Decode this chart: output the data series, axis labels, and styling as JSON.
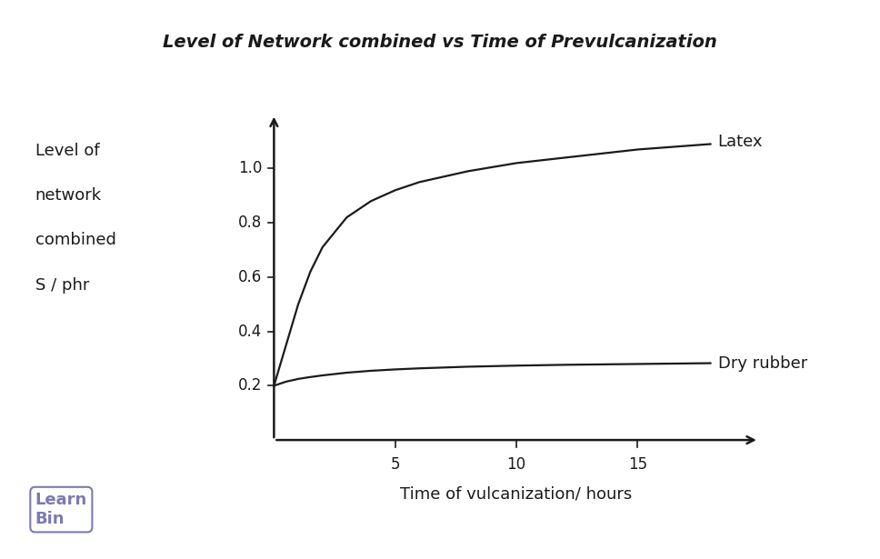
{
  "title": "Level of Network combined vs Time of Prevulcanization",
  "xlabel": "Time of vulcanization/ hours",
  "xlim": [
    0,
    20
  ],
  "ylim": [
    0,
    1.2
  ],
  "yticks": [
    0.2,
    0.4,
    0.6,
    0.8,
    1.0
  ],
  "xticks": [
    5,
    10,
    15
  ],
  "background_color": "#ffffff",
  "line_color": "#1a1a1a",
  "title_fontsize": 14,
  "label_fontsize": 13,
  "tick_fontsize": 12,
  "ylabel_lines": [
    "Level of",
    "network",
    "combined",
    "S / phr"
  ],
  "latex_label": "Latex",
  "dry_rubber_label": "Dry rubber",
  "latex_x": [
    0,
    0.5,
    1.0,
    1.5,
    2.0,
    3.0,
    4.0,
    5.0,
    6.0,
    8.0,
    10.0,
    12.0,
    15.0,
    18.0
  ],
  "latex_y": [
    0.2,
    0.35,
    0.5,
    0.62,
    0.71,
    0.82,
    0.88,
    0.92,
    0.95,
    0.99,
    1.02,
    1.04,
    1.07,
    1.09
  ],
  "dry_rubber_x": [
    0,
    0.5,
    1.0,
    1.5,
    2.0,
    3.0,
    4.0,
    5.0,
    6.0,
    8.0,
    10.0,
    12.0,
    15.0,
    18.0
  ],
  "dry_rubber_y": [
    0.2,
    0.215,
    0.225,
    0.232,
    0.238,
    0.248,
    0.255,
    0.26,
    0.264,
    0.27,
    0.274,
    0.277,
    0.28,
    0.283
  ]
}
